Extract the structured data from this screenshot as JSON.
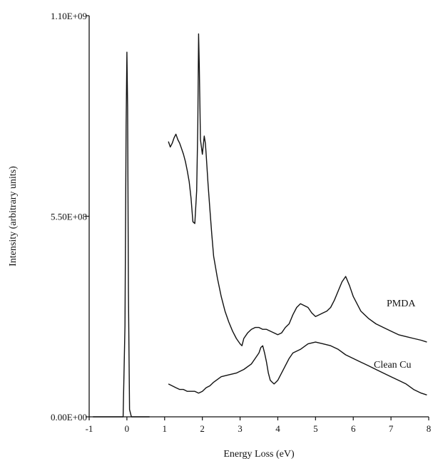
{
  "chart_data": {
    "type": "line",
    "xlabel": "Energy Loss (eV)",
    "ylabel": "Intensity (arbitrary units)",
    "xlim": [
      -1,
      8
    ],
    "ylim": [
      0,
      1100000000
    ],
    "x_ticks": [
      -1,
      0,
      1,
      2,
      3,
      4,
      5,
      6,
      7,
      8
    ],
    "x_tick_labels": [
      "-1",
      "0",
      "1",
      "2",
      "3",
      "4",
      "5",
      "6",
      "7",
      "8"
    ],
    "y_ticks": [
      0,
      550000000,
      1100000000
    ],
    "y_tick_labels": [
      "0.00E+00",
      "5.50E+08",
      "1.10E+09"
    ],
    "grid": false,
    "legend": "none",
    "series": [
      {
        "key": "elastic",
        "x": [
          -0.9,
          -0.1,
          -0.05,
          -0.02,
          0.0,
          0.02,
          0.04,
          0.07,
          0.12,
          0.6
        ],
        "y": [
          0,
          0,
          250000000,
          800000000,
          1000000000,
          850000000,
          350000000,
          20000000,
          0,
          0
        ]
      },
      {
        "key": "pmda",
        "name": "PMDA",
        "x": [
          1.1,
          1.15,
          1.2,
          1.25,
          1.3,
          1.35,
          1.4,
          1.45,
          1.5,
          1.55,
          1.6,
          1.65,
          1.7,
          1.75,
          1.8,
          1.85,
          1.88,
          1.9,
          1.92,
          1.95,
          2.0,
          2.05,
          2.08,
          2.1,
          2.15,
          2.2,
          2.25,
          2.3,
          2.4,
          2.5,
          2.6,
          2.7,
          2.8,
          2.9,
          3.0,
          3.05,
          3.1,
          3.2,
          3.3,
          3.4,
          3.5,
          3.6,
          3.7,
          3.8,
          3.9,
          4.0,
          4.1,
          4.2,
          4.3,
          4.4,
          4.5,
          4.6,
          4.7,
          4.8,
          4.9,
          5.0,
          5.1,
          5.2,
          5.3,
          5.4,
          5.5,
          5.6,
          5.7,
          5.8,
          5.9,
          6.0,
          6.2,
          6.4,
          6.6,
          6.8,
          7.0,
          7.2,
          7.4,
          7.6,
          7.8,
          7.95
        ],
        "y": [
          755000000,
          740000000,
          750000000,
          765000000,
          775000000,
          760000000,
          750000000,
          735000000,
          720000000,
          700000000,
          675000000,
          645000000,
          600000000,
          535000000,
          530000000,
          620000000,
          800000000,
          1050000000,
          960000000,
          760000000,
          720000000,
          770000000,
          750000000,
          720000000,
          640000000,
          570000000,
          500000000,
          440000000,
          380000000,
          330000000,
          290000000,
          260000000,
          235000000,
          215000000,
          200000000,
          195000000,
          215000000,
          230000000,
          240000000,
          245000000,
          245000000,
          240000000,
          240000000,
          235000000,
          230000000,
          225000000,
          230000000,
          245000000,
          255000000,
          280000000,
          300000000,
          310000000,
          305000000,
          300000000,
          285000000,
          275000000,
          280000000,
          285000000,
          290000000,
          300000000,
          320000000,
          345000000,
          370000000,
          385000000,
          360000000,
          330000000,
          290000000,
          270000000,
          255000000,
          245000000,
          235000000,
          225000000,
          220000000,
          215000000,
          210000000,
          205000000
        ]
      },
      {
        "key": "clean_cu",
        "name": "Clean Cu",
        "x": [
          1.1,
          1.2,
          1.3,
          1.4,
          1.5,
          1.6,
          1.7,
          1.8,
          1.9,
          2.0,
          2.1,
          2.2,
          2.3,
          2.5,
          2.7,
          2.9,
          3.1,
          3.3,
          3.4,
          3.5,
          3.55,
          3.6,
          3.65,
          3.7,
          3.75,
          3.8,
          3.85,
          3.9,
          3.95,
          4.0,
          4.1,
          4.2,
          4.3,
          4.4,
          4.6,
          4.8,
          5.0,
          5.2,
          5.4,
          5.6,
          5.8,
          6.0,
          6.2,
          6.4,
          6.6,
          6.8,
          7.0,
          7.2,
          7.4,
          7.6,
          7.8,
          7.95
        ],
        "y": [
          90000000,
          85000000,
          80000000,
          75000000,
          75000000,
          70000000,
          70000000,
          70000000,
          65000000,
          70000000,
          80000000,
          85000000,
          95000000,
          110000000,
          115000000,
          120000000,
          130000000,
          145000000,
          160000000,
          175000000,
          190000000,
          195000000,
          175000000,
          150000000,
          120000000,
          100000000,
          95000000,
          90000000,
          95000000,
          100000000,
          120000000,
          140000000,
          160000000,
          175000000,
          185000000,
          200000000,
          205000000,
          200000000,
          195000000,
          185000000,
          170000000,
          160000000,
          150000000,
          140000000,
          130000000,
          120000000,
          110000000,
          100000000,
          90000000,
          75000000,
          65000000,
          60000000
        ]
      }
    ]
  }
}
